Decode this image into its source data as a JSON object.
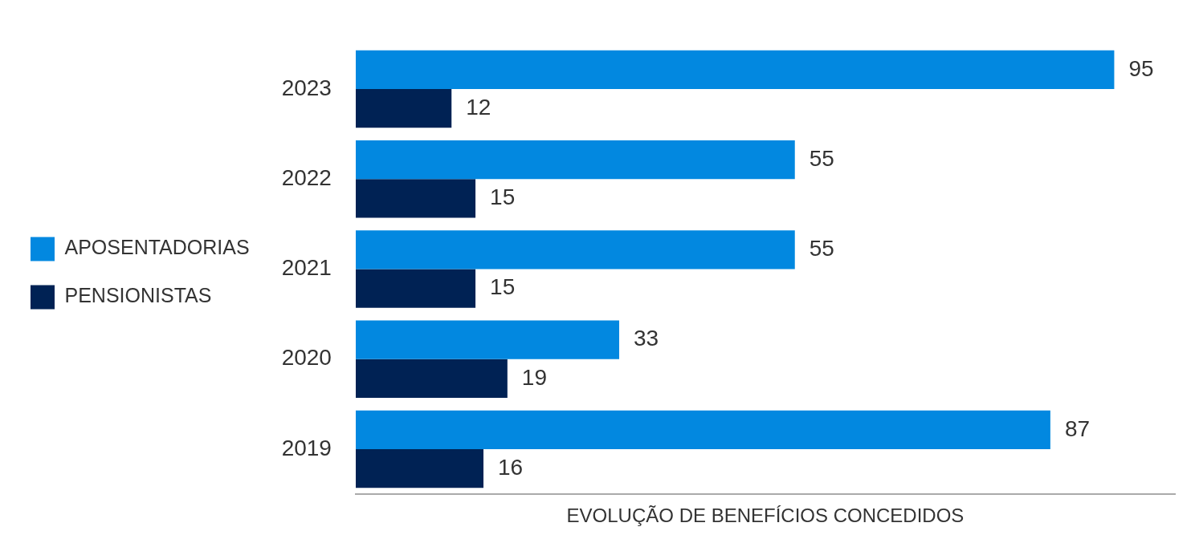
{
  "chart_data": {
    "type": "bar",
    "orientation": "horizontal",
    "xlabel": "EVOLUÇÃO DE BENEFÍCIOS CONCEDIDOS",
    "categories": [
      "2023",
      "2022",
      "2021",
      "2020",
      "2019"
    ],
    "series": [
      {
        "name": "APOSENTADORIAS",
        "color": "#0288e0",
        "values": [
          95,
          55,
          55,
          33,
          87
        ]
      },
      {
        "name": "PENSIONISTAS",
        "color": "#002254",
        "values": [
          12,
          15,
          15,
          19,
          16
        ]
      }
    ],
    "data_labels": true,
    "legend": "left",
    "grid": false,
    "tick_labels": "y"
  }
}
